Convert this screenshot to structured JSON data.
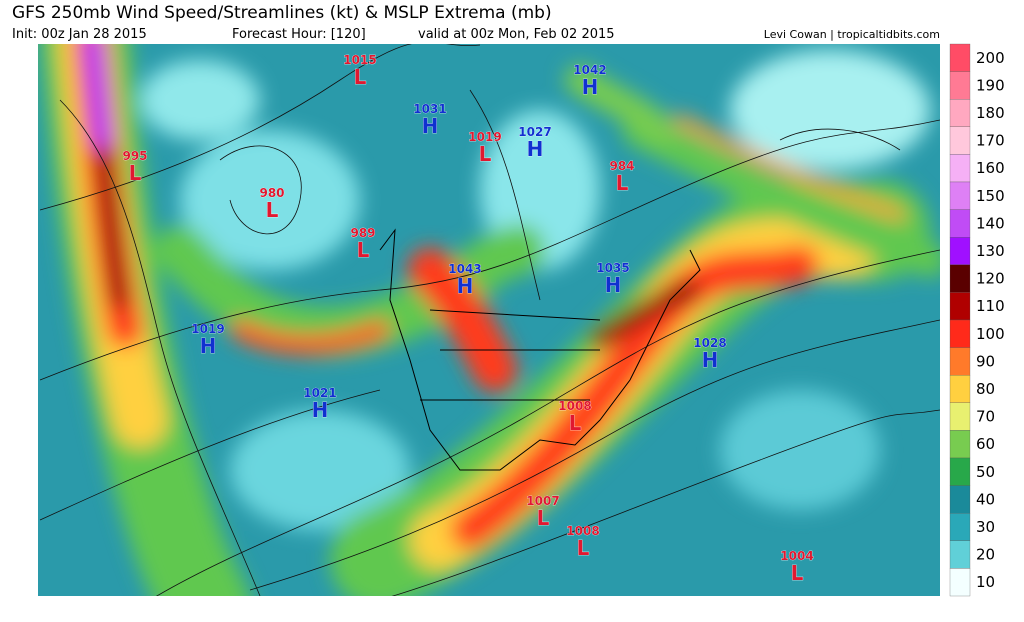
{
  "header": {
    "title": "GFS 250mb Wind Speed/Streamlines (kt) & MSLP Extrema (mb)",
    "init": "Init: 00z Jan 28 2015",
    "forecast_hour": "Forecast Hour: [120]",
    "valid": "valid at 00z Mon, Feb 02 2015",
    "credit": "Levi Cowan | tropicaltidbits.com"
  },
  "colorbar": {
    "labels": [
      200,
      190,
      180,
      170,
      160,
      150,
      140,
      130,
      120,
      110,
      100,
      90,
      80,
      70,
      60,
      50,
      40,
      30,
      20,
      10
    ],
    "colors": [
      "#ff4c66",
      "#ff7a94",
      "#ffa8c0",
      "#ffc8dc",
      "#f5b0f5",
      "#de80f5",
      "#c04cf5",
      "#a010ff",
      "#5a0000",
      "#b00000",
      "#ff2a1a",
      "#ff7a2a",
      "#ffd040",
      "#e8f070",
      "#78cc50",
      "#28a84a",
      "#1a8a9a",
      "#2aa8b8",
      "#60d0d8",
      "#f4ffff"
    ]
  },
  "extrema": [
    {
      "type": "L",
      "value": 1015
    },
    {
      "type": "H",
      "value": 1031
    },
    {
      "type": "H",
      "value": 1042
    },
    {
      "type": "L",
      "value": 1019
    },
    {
      "type": "H",
      "value": 1027
    },
    {
      "type": "L",
      "value": 995
    },
    {
      "type": "L",
      "value": 980
    },
    {
      "type": "L",
      "value": 984
    },
    {
      "type": "L",
      "value": 989
    },
    {
      "type": "H",
      "value": 1043
    },
    {
      "type": "H",
      "value": 1035
    },
    {
      "type": "H",
      "value": 1019
    },
    {
      "type": "H",
      "value": 1028
    },
    {
      "type": "H",
      "value": 1021
    },
    {
      "type": "L",
      "value": 1008
    },
    {
      "type": "L",
      "value": 1007
    },
    {
      "type": "L",
      "value": 1008
    },
    {
      "type": "L",
      "value": 1004
    }
  ]
}
